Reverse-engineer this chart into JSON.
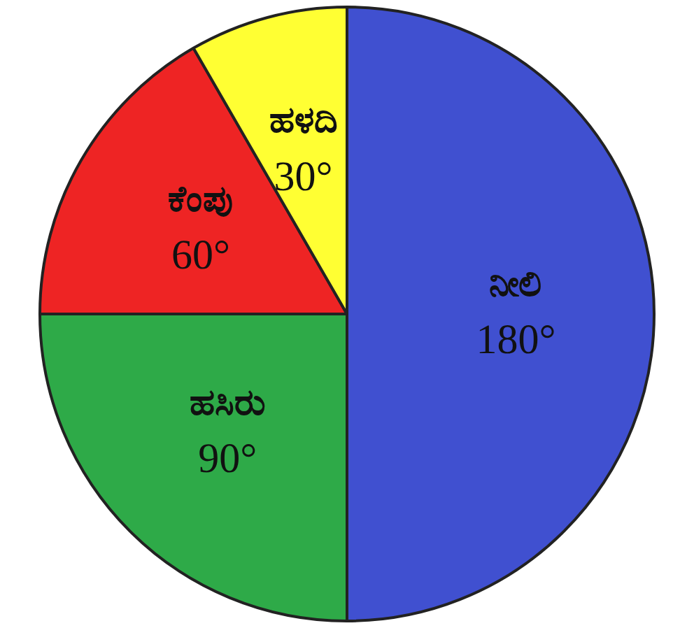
{
  "chart_data": {
    "type": "pie",
    "categories": [
      "ನೀಲಿ",
      "ಹಸಿರು",
      "ಕೆಂಪು",
      "ಹಳದಿ"
    ],
    "values": [
      180,
      90,
      60,
      30
    ],
    "value_labels": [
      "180°",
      "90°",
      "60°",
      "30°"
    ],
    "colors": [
      "#4050d0",
      "#2eaa48",
      "#ee2424",
      "#ffff33"
    ]
  }
}
